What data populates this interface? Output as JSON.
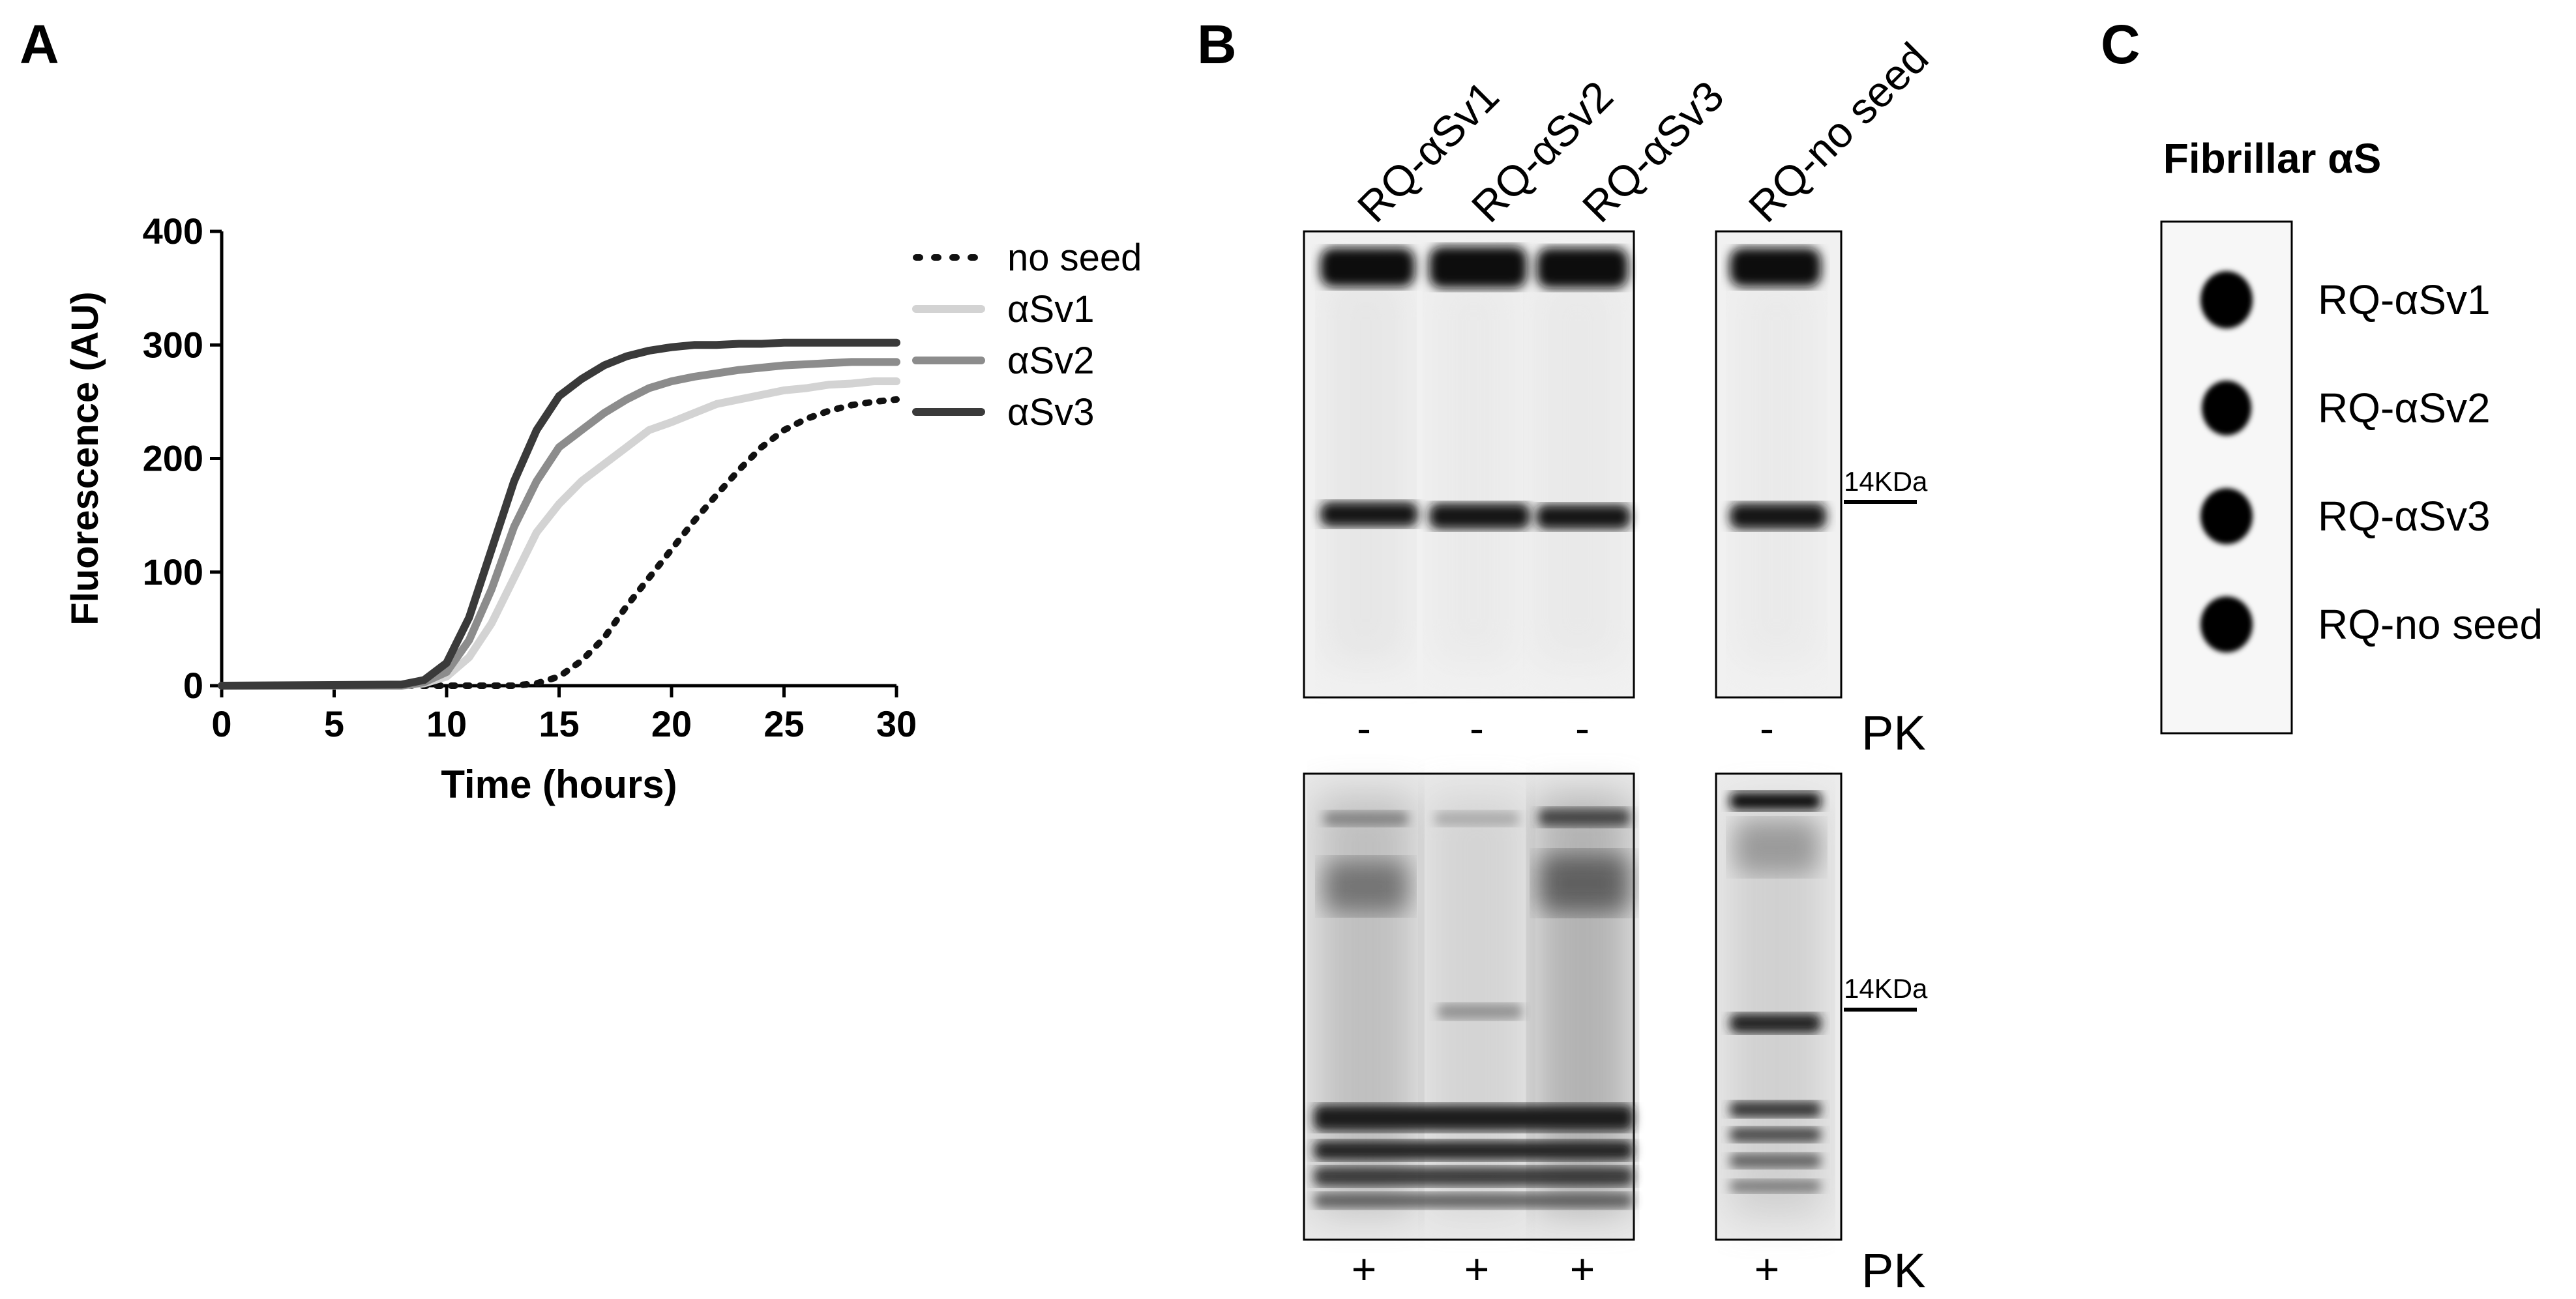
{
  "panels": {
    "a": "A",
    "b": "B",
    "c": "C"
  },
  "chart_data": {
    "type": "line",
    "xlabel": "Time (hours)",
    "ylabel": "Fluorescence (AU)",
    "xlim": [
      0,
      30
    ],
    "ylim": [
      0,
      400
    ],
    "xticks": [
      0,
      5,
      10,
      15,
      20,
      25,
      30
    ],
    "yticks": [
      0,
      100,
      200,
      300,
      400
    ],
    "grid": false,
    "legend_position": "right",
    "series": [
      {
        "name": "no seed",
        "color": "#111111",
        "style": "dotted",
        "x": [
          0,
          8,
          10,
          12,
          13,
          14,
          15,
          16,
          17,
          18,
          19,
          20,
          21,
          22,
          23,
          24,
          25,
          26,
          27,
          28,
          29,
          30
        ],
        "y": [
          0,
          0,
          0,
          0,
          0,
          2,
          8,
          22,
          42,
          70,
          95,
          120,
          145,
          168,
          190,
          210,
          225,
          235,
          242,
          247,
          250,
          252
        ]
      },
      {
        "name": "αSv1",
        "color": "#d3d3d3",
        "style": "solid",
        "x": [
          0,
          8,
          9,
          10,
          11,
          12,
          13,
          14,
          15,
          16,
          17,
          18,
          19,
          20,
          21,
          22,
          23,
          24,
          25,
          26,
          27,
          28,
          29,
          30
        ],
        "y": [
          0,
          0,
          2,
          8,
          25,
          55,
          95,
          135,
          160,
          180,
          195,
          210,
          225,
          232,
          240,
          248,
          252,
          256,
          260,
          262,
          265,
          266,
          268,
          268
        ]
      },
      {
        "name": "αSv2",
        "color": "#8c8c8c",
        "style": "solid",
        "x": [
          0,
          8,
          9,
          10,
          11,
          12,
          13,
          14,
          15,
          16,
          17,
          18,
          19,
          20,
          21,
          22,
          23,
          24,
          25,
          26,
          27,
          28,
          29,
          30
        ],
        "y": [
          0,
          0,
          3,
          12,
          40,
          85,
          140,
          180,
          210,
          225,
          240,
          252,
          262,
          268,
          272,
          275,
          278,
          280,
          282,
          283,
          284,
          285,
          285,
          285
        ]
      },
      {
        "name": "αSv3",
        "color": "#3a3a3a",
        "style": "solid",
        "x": [
          0,
          8,
          9,
          10,
          11,
          12,
          13,
          14,
          15,
          16,
          17,
          18,
          19,
          20,
          21,
          22,
          23,
          24,
          25,
          26,
          27,
          28,
          29,
          30
        ],
        "y": [
          0,
          1,
          5,
          20,
          60,
          120,
          180,
          225,
          255,
          270,
          282,
          290,
          295,
          298,
          300,
          300,
          301,
          301,
          302,
          302,
          302,
          302,
          302,
          302
        ]
      }
    ]
  },
  "blot": {
    "lanes": [
      "RQ-αSv1",
      "RQ-αSv2",
      "RQ-αSv3",
      "RQ-no seed"
    ],
    "marker": "14KDa",
    "pk_label": "PK",
    "top_pk": [
      "-",
      "-",
      "-",
      "-"
    ],
    "bottom_pk": [
      "+",
      "+",
      "+",
      "+"
    ]
  },
  "dot_blot": {
    "title": "Fibrillar αS",
    "labels": [
      "RQ-αSv1",
      "RQ-αSv2",
      "RQ-αSv3",
      "RQ-no seed"
    ]
  }
}
